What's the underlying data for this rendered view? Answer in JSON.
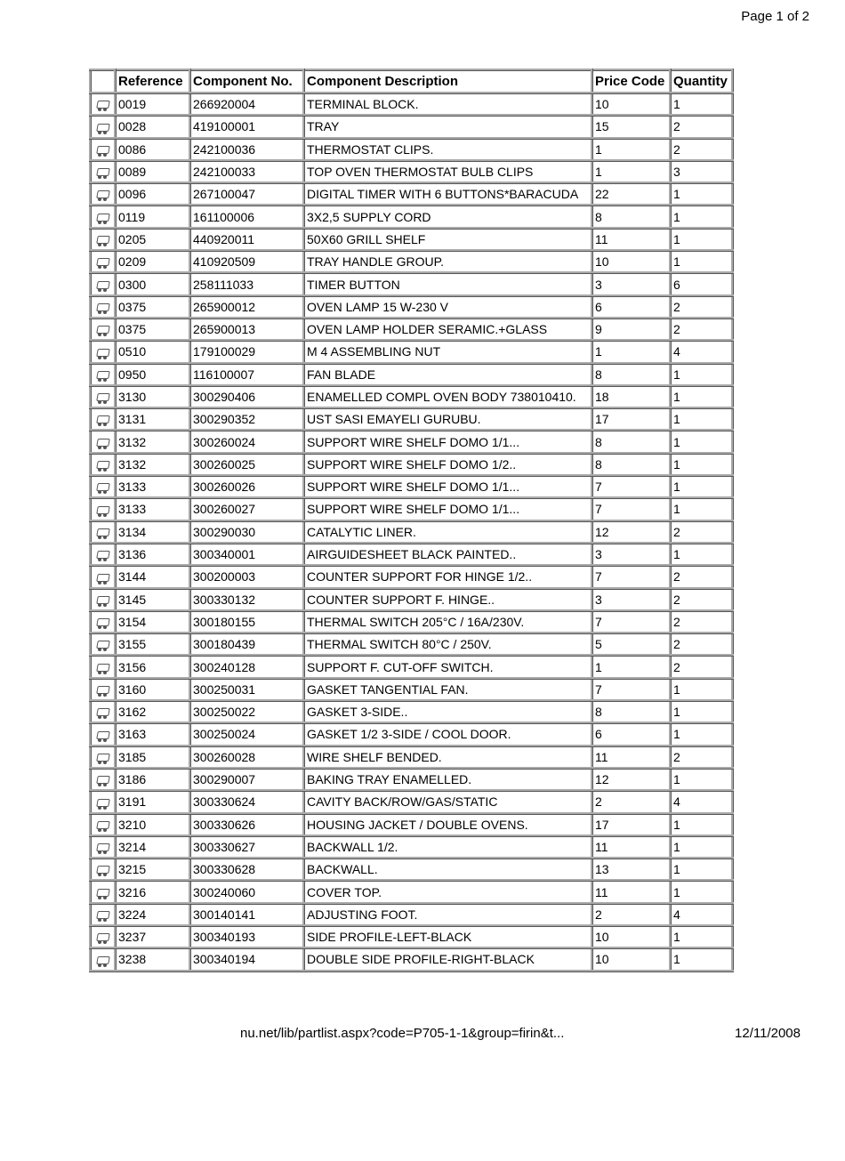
{
  "header": {
    "page_label": "Page 1 of 2"
  },
  "footer": {
    "url_fragment": "nu.net/lib/partlist.aspx?code=P705-1-1&group=firin&t...",
    "date": "12/11/2008"
  },
  "table": {
    "columns": [
      "",
      "Reference",
      "Component No.",
      "Component Description",
      "Price Code",
      "Quantity"
    ],
    "col_align": [
      "center",
      "right",
      "left",
      "left",
      "left",
      "left"
    ],
    "background_color": "#ffffff",
    "border_color": "#aaaaaa",
    "font_size": 14,
    "header_font_size": 15,
    "rows": [
      {
        "reference": "0019",
        "component_no": "266920004",
        "description": "TERMINAL BLOCK.",
        "price_code": "10",
        "quantity": "1"
      },
      {
        "reference": "0028",
        "component_no": "419100001",
        "description": "TRAY",
        "price_code": "15",
        "quantity": "2"
      },
      {
        "reference": "0086",
        "component_no": "242100036",
        "description": "THERMOSTAT CLIPS.",
        "price_code": "1",
        "quantity": "2"
      },
      {
        "reference": "0089",
        "component_no": "242100033",
        "description": "TOP OVEN THERMOSTAT BULB CLIPS",
        "price_code": "1",
        "quantity": "3"
      },
      {
        "reference": "0096",
        "component_no": "267100047",
        "description": "DIGITAL TIMER WITH 6 BUTTONS*BARACUDA",
        "price_code": "22",
        "quantity": "1"
      },
      {
        "reference": "0119",
        "component_no": "161100006",
        "description": "3X2,5 SUPPLY CORD",
        "price_code": "8",
        "quantity": "1"
      },
      {
        "reference": "0205",
        "component_no": "440920011",
        "description": "50X60 GRILL SHELF",
        "price_code": "11",
        "quantity": "1"
      },
      {
        "reference": "0209",
        "component_no": "410920509",
        "description": "TRAY HANDLE GROUP.",
        "price_code": "10",
        "quantity": "1"
      },
      {
        "reference": "0300",
        "component_no": "258111033",
        "description": "TIMER BUTTON",
        "price_code": "3",
        "quantity": "6"
      },
      {
        "reference": "0375",
        "component_no": "265900012",
        "description": "OVEN LAMP 15 W-230 V",
        "price_code": "6",
        "quantity": "2"
      },
      {
        "reference": "0375",
        "component_no": "265900013",
        "description": "OVEN LAMP HOLDER SERAMIC.+GLASS",
        "price_code": "9",
        "quantity": "2"
      },
      {
        "reference": "0510",
        "component_no": "179100029",
        "description": "M 4 ASSEMBLING NUT",
        "price_code": "1",
        "quantity": "4"
      },
      {
        "reference": "0950",
        "component_no": "116100007",
        "description": "FAN BLADE",
        "price_code": "8",
        "quantity": "1"
      },
      {
        "reference": "3130",
        "component_no": "300290406",
        "description": "ENAMELLED COMPL OVEN BODY 738010410.",
        "price_code": "18",
        "quantity": "1"
      },
      {
        "reference": "3131",
        "component_no": "300290352",
        "description": "UST SASI EMAYELI GURUBU.",
        "price_code": "17",
        "quantity": "1"
      },
      {
        "reference": "3132",
        "component_no": "300260024",
        "description": "SUPPORT WIRE SHELF DOMO 1/1...",
        "price_code": "8",
        "quantity": "1"
      },
      {
        "reference": "3132",
        "component_no": "300260025",
        "description": "SUPPORT WIRE SHELF DOMO 1/2..",
        "price_code": "8",
        "quantity": "1"
      },
      {
        "reference": "3133",
        "component_no": "300260026",
        "description": "SUPPORT WIRE SHELF DOMO 1/1...",
        "price_code": "7",
        "quantity": "1"
      },
      {
        "reference": "3133",
        "component_no": "300260027",
        "description": "SUPPORT WIRE SHELF DOMO 1/1...",
        "price_code": "7",
        "quantity": "1"
      },
      {
        "reference": "3134",
        "component_no": "300290030",
        "description": "CATALYTIC LINER.",
        "price_code": "12",
        "quantity": "2"
      },
      {
        "reference": "3136",
        "component_no": "300340001",
        "description": "AIRGUIDESHEET BLACK PAINTED..",
        "price_code": "3",
        "quantity": "1"
      },
      {
        "reference": "3144",
        "component_no": "300200003",
        "description": "COUNTER SUPPORT FOR HINGE 1/2..",
        "price_code": "7",
        "quantity": "2"
      },
      {
        "reference": "3145",
        "component_no": "300330132",
        "description": "COUNTER SUPPORT F. HINGE..",
        "price_code": "3",
        "quantity": "2"
      },
      {
        "reference": "3154",
        "component_no": "300180155",
        "description": "THERMAL SWITCH 205°C / 16A/230V.",
        "price_code": "7",
        "quantity": "2"
      },
      {
        "reference": "3155",
        "component_no": "300180439",
        "description": "THERMAL SWITCH 80°C / 250V.",
        "price_code": "5",
        "quantity": "2"
      },
      {
        "reference": "3156",
        "component_no": "300240128",
        "description": "SUPPORT F. CUT-OFF SWITCH.",
        "price_code": "1",
        "quantity": "2"
      },
      {
        "reference": "3160",
        "component_no": "300250031",
        "description": "GASKET TANGENTIAL FAN.",
        "price_code": "7",
        "quantity": "1"
      },
      {
        "reference": "3162",
        "component_no": "300250022",
        "description": "GASKET 3-SIDE..",
        "price_code": "8",
        "quantity": "1"
      },
      {
        "reference": "3163",
        "component_no": "300250024",
        "description": "GASKET 1/2 3-SIDE / COOL DOOR.",
        "price_code": "6",
        "quantity": "1"
      },
      {
        "reference": "3185",
        "component_no": "300260028",
        "description": "WIRE SHELF BENDED.",
        "price_code": "11",
        "quantity": "2"
      },
      {
        "reference": "3186",
        "component_no": "300290007",
        "description": "BAKING TRAY ENAMELLED.",
        "price_code": "12",
        "quantity": "1"
      },
      {
        "reference": "3191",
        "component_no": "300330624",
        "description": "CAVITY BACK/ROW/GAS/STATIC",
        "price_code": "2",
        "quantity": "4"
      },
      {
        "reference": "3210",
        "component_no": "300330626",
        "description": "HOUSING JACKET / DOUBLE OVENS.",
        "price_code": "17",
        "quantity": "1"
      },
      {
        "reference": "3214",
        "component_no": "300330627",
        "description": "BACKWALL 1/2.",
        "price_code": "11",
        "quantity": "1"
      },
      {
        "reference": "3215",
        "component_no": "300330628",
        "description": "BACKWALL.",
        "price_code": "13",
        "quantity": "1"
      },
      {
        "reference": "3216",
        "component_no": "300240060",
        "description": "COVER TOP.",
        "price_code": "11",
        "quantity": "1"
      },
      {
        "reference": "3224",
        "component_no": "300140141",
        "description": "ADJUSTING FOOT.",
        "price_code": "2",
        "quantity": "4"
      },
      {
        "reference": "3237",
        "component_no": "300340193",
        "description": "SIDE PROFILE-LEFT-BLACK",
        "price_code": "10",
        "quantity": "1"
      },
      {
        "reference": "3238",
        "component_no": "300340194",
        "description": "DOUBLE SIDE PROFILE-RIGHT-BLACK",
        "price_code": "10",
        "quantity": "1"
      }
    ]
  }
}
